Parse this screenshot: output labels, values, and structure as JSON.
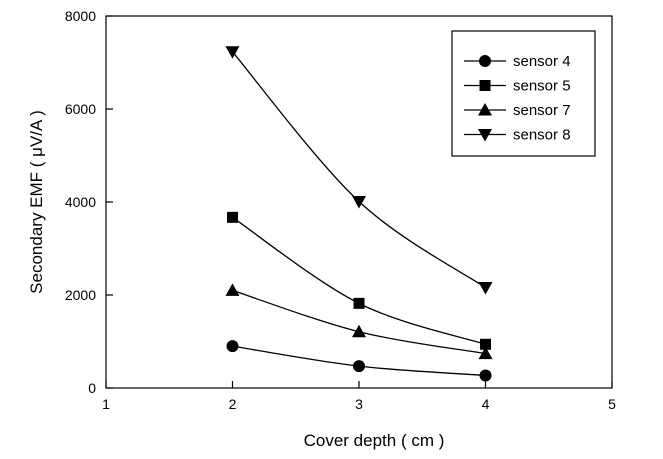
{
  "chart_data": {
    "type": "line",
    "title": "",
    "xlabel": "Cover depth ( cm )",
    "ylabel": "Secondary EMF ( μV/A )",
    "xlim": [
      1,
      5
    ],
    "ylim": [
      0,
      8000
    ],
    "xticks": [
      1,
      2,
      3,
      4,
      5
    ],
    "yticks": [
      0,
      2000,
      4000,
      6000,
      8000
    ],
    "x": [
      2,
      3,
      4
    ],
    "grid": false,
    "legend_position": "top-right",
    "series": [
      {
        "name": "sensor 4",
        "marker": "circle",
        "values": [
          900,
          470,
          270
        ]
      },
      {
        "name": "sensor 5",
        "marker": "square",
        "values": [
          3670,
          1820,
          940
        ]
      },
      {
        "name": "sensor 7",
        "marker": "triangle-up",
        "values": [
          2100,
          1210,
          740
        ]
      },
      {
        "name": "sensor 8",
        "marker": "triangle-down",
        "values": [
          7230,
          4010,
          2160
        ]
      }
    ]
  }
}
